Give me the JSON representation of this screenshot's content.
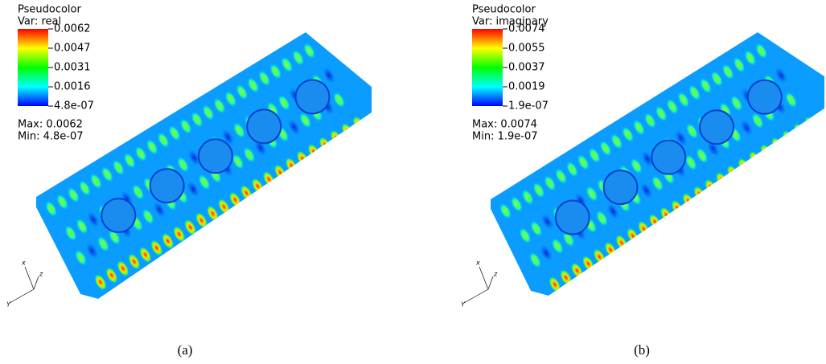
{
  "panels": [
    {
      "legend": {
        "title": "Pseudocolor",
        "variable": "Var: real",
        "ticks": [
          "0.0062",
          "0.0047",
          "0.0031",
          "0.0016",
          "4.8e-07"
        ],
        "max": "Max:  0.0062",
        "min": "Min:  4.8e-07"
      },
      "axes": {
        "x": "x",
        "z": "z",
        "y": "Y"
      },
      "caption": "(a)"
    },
    {
      "legend": {
        "title": "Pseudocolor",
        "variable": "Var: imaginary",
        "ticks": [
          "0.0074",
          "0.0055",
          "0.0037",
          "0.0019",
          "1.9e-07"
        ],
        "max": "Max:  0.0074",
        "min": "Min:  1.9e-07"
      },
      "axes": {
        "x": "x",
        "z": "z",
        "y": "Y"
      },
      "caption": "(b)"
    }
  ]
}
